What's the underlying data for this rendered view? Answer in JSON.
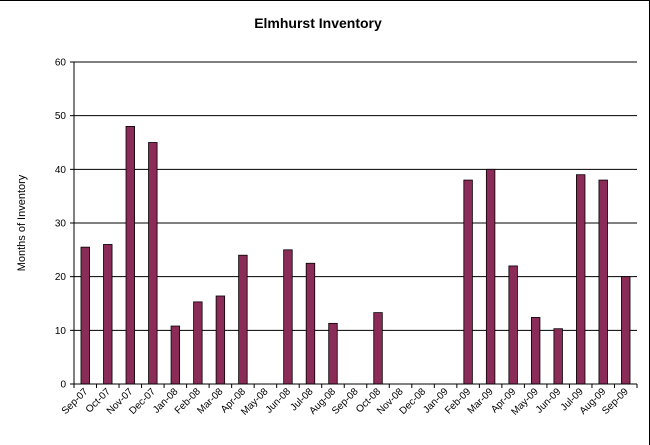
{
  "chart_data": {
    "type": "bar",
    "title": "Elmhurst Inventory",
    "xlabel": "",
    "ylabel": "Months of Inventory",
    "ylim": [
      0,
      60
    ],
    "yticks": [
      0,
      10,
      20,
      30,
      40,
      50,
      60
    ],
    "grid": true,
    "legend": "none",
    "bar_color": "#8B2B57",
    "categories": [
      "Sep-07",
      "Oct-07",
      "Nov-07",
      "Dec-07",
      "Jan-08",
      "Feb-08",
      "Mar-08",
      "Apr-08",
      "May-08",
      "Jun-08",
      "Jul-08",
      "Aug-08",
      "Sep-08",
      "Oct-08",
      "Nov-08",
      "Dec-08",
      "Jan-09",
      "Feb-09",
      "Mar-09",
      "Apr-09",
      "May-09",
      "Jun-09",
      "Jul-09",
      "Aug-09",
      "Sep-09"
    ],
    "values": [
      25.5,
      26,
      48,
      45,
      10.8,
      15.3,
      16.4,
      24,
      0,
      25,
      22.5,
      11.3,
      0,
      13.3,
      0,
      0,
      0,
      38,
      40,
      22,
      12.4,
      10.3,
      39,
      38,
      20
    ]
  }
}
